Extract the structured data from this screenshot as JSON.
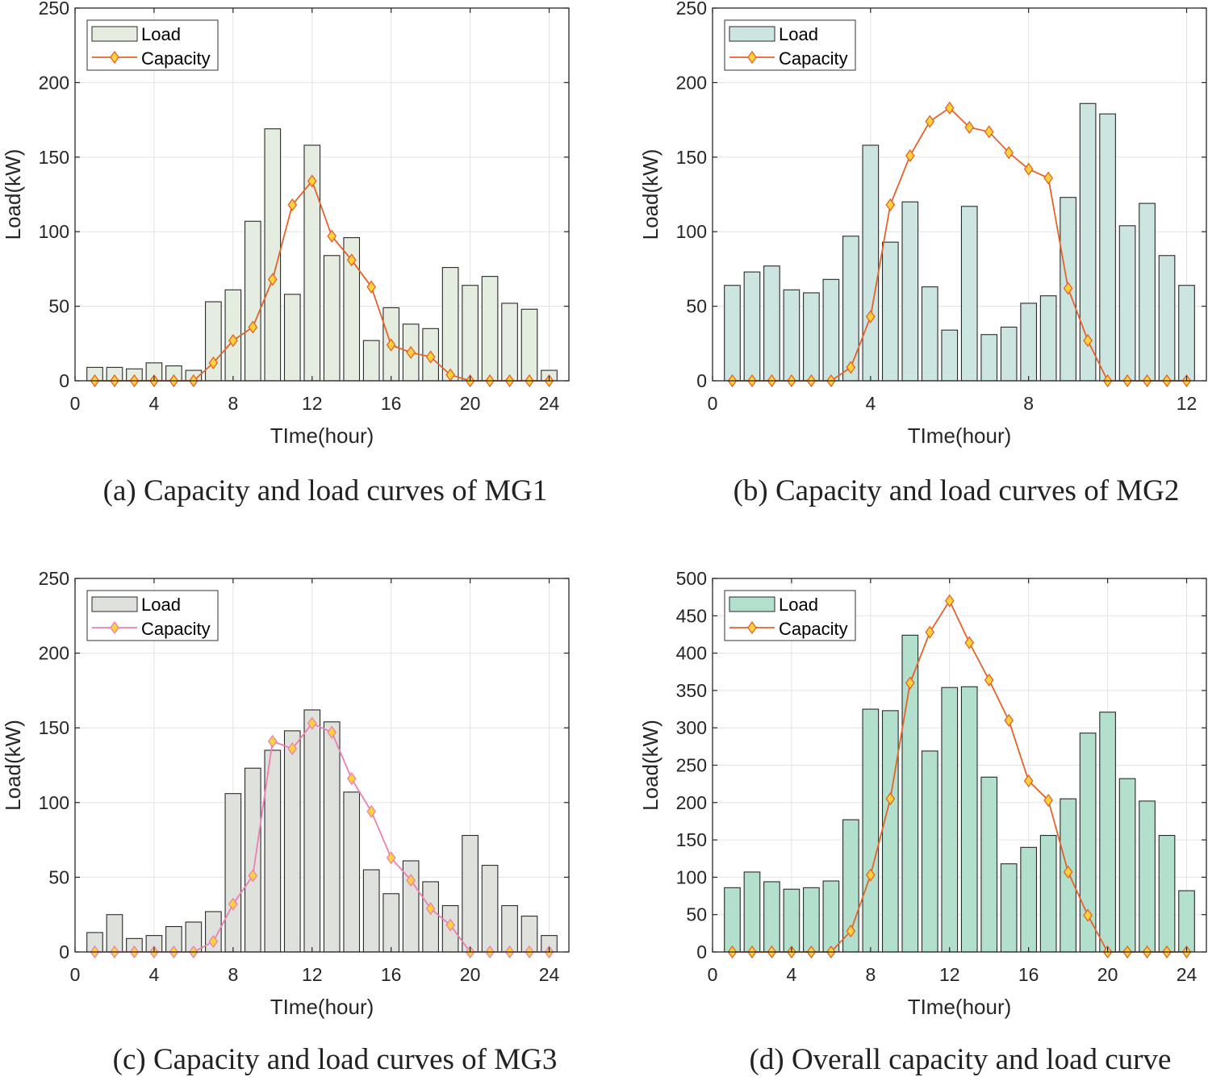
{
  "chart_data": [
    {
      "type": "bar",
      "caption": "(a) Capacity and load curves of MG1",
      "xlabel": "TIme(hour)",
      "ylabel": "Load(kW)",
      "xlim": [
        0,
        25
      ],
      "ylim": [
        0,
        250
      ],
      "xticks": [
        0,
        4,
        8,
        12,
        16,
        20,
        24
      ],
      "yticks": [
        0,
        50,
        100,
        150,
        200,
        250
      ],
      "legend": [
        "Load",
        "Capacity"
      ],
      "legend_position": "top-left",
      "bar_color": "#e5ede1",
      "line_color": "#e3632a",
      "marker_fill": "#fdd23a",
      "x": [
        1,
        2,
        3,
        4,
        5,
        6,
        7,
        8,
        9,
        10,
        11,
        12,
        13,
        14,
        15,
        16,
        17,
        18,
        19,
        20,
        21,
        22,
        23,
        24
      ],
      "series": [
        {
          "name": "Load",
          "kind": "bar",
          "values": [
            9,
            9,
            8,
            12,
            10,
            7,
            53,
            61,
            107,
            169,
            58,
            158,
            84,
            96,
            27,
            49,
            38,
            35,
            76,
            64,
            70,
            52,
            48,
            7
          ]
        },
        {
          "name": "Capacity",
          "kind": "line",
          "values": [
            0,
            0,
            0,
            0,
            0,
            0,
            12,
            27,
            36,
            68,
            118,
            134,
            97,
            81,
            63,
            24,
            19,
            16,
            4,
            0,
            0,
            0,
            0,
            0
          ]
        }
      ]
    },
    {
      "type": "bar",
      "caption": "(b) Capacity and load curves of MG2",
      "xlabel": "TIme(hour)",
      "ylabel": "Load(kW)",
      "xlim": [
        0,
        12.5
      ],
      "ylim": [
        0,
        250
      ],
      "xticks": [
        0,
        4,
        8,
        12
      ],
      "yticks": [
        0,
        50,
        100,
        150,
        200,
        250
      ],
      "legend": [
        "Load",
        "Capacity"
      ],
      "legend_position": "top-left",
      "bar_color": "#cde5e1",
      "line_color": "#e3632a",
      "marker_fill": "#fdd23a",
      "x": [
        0.5,
        1,
        1.5,
        2,
        2.5,
        3,
        3.5,
        4,
        4.5,
        5,
        5.5,
        6,
        6.5,
        7,
        7.5,
        8,
        8.5,
        9,
        9.5,
        10,
        10.5,
        11,
        11.5,
        12
      ],
      "series": [
        {
          "name": "Load",
          "kind": "bar",
          "values": [
            64,
            73,
            77,
            61,
            59,
            68,
            97,
            158,
            93,
            120,
            63,
            34,
            117,
            31,
            36,
            52,
            57,
            123,
            186,
            179,
            104,
            119,
            84,
            64
          ]
        },
        {
          "name": "Capacity",
          "kind": "line",
          "values": [
            0,
            0,
            0,
            0,
            0,
            0,
            9,
            43,
            118,
            151,
            174,
            183,
            170,
            167,
            153,
            142,
            136,
            62,
            27,
            0,
            0,
            0,
            0,
            0
          ]
        }
      ]
    },
    {
      "type": "bar",
      "caption": "(c) Capacity and load curves of MG3",
      "xlabel": "TIme(hour)",
      "ylabel": "Load(kW)",
      "xlim": [
        0,
        25
      ],
      "ylim": [
        0,
        250
      ],
      "xticks": [
        0,
        4,
        8,
        12,
        16,
        20,
        24
      ],
      "yticks": [
        0,
        50,
        100,
        150,
        200,
        250
      ],
      "legend": [
        "Load",
        "Capacity"
      ],
      "legend_position": "top-left",
      "bar_color": "#dfe1dd",
      "line_color": "#ee7fb0",
      "marker_fill": "#fdd23a",
      "x": [
        1,
        2,
        3,
        4,
        5,
        6,
        7,
        8,
        9,
        10,
        11,
        12,
        13,
        14,
        15,
        16,
        17,
        18,
        19,
        20,
        21,
        22,
        23,
        24
      ],
      "series": [
        {
          "name": "Load",
          "kind": "bar",
          "values": [
            13,
            25,
            9,
            11,
            17,
            20,
            27,
            106,
            123,
            135,
            148,
            162,
            154,
            107,
            55,
            39,
            61,
            47,
            31,
            78,
            58,
            31,
            24,
            11
          ]
        },
        {
          "name": "Capacity",
          "kind": "line",
          "values": [
            0,
            0,
            0,
            0,
            0,
            0,
            7,
            32,
            51,
            141,
            136,
            153,
            147,
            116,
            94,
            63,
            48,
            29,
            18,
            0,
            0,
            0,
            0,
            0
          ]
        }
      ]
    },
    {
      "type": "bar",
      "caption": "(d) Overall capacity and load curve",
      "xlabel": "TIme(hour)",
      "ylabel": "Load(kW)",
      "xlim": [
        0,
        25
      ],
      "ylim": [
        0,
        500
      ],
      "xticks": [
        0,
        4,
        8,
        12,
        16,
        20,
        24
      ],
      "yticks": [
        0,
        50,
        100,
        150,
        200,
        250,
        300,
        350,
        400,
        450,
        500
      ],
      "legend": [
        "Load",
        "Capacity"
      ],
      "legend_position": "top-left",
      "bar_color": "#b3dfcd",
      "line_color": "#e3632a",
      "marker_fill": "#fdd23a",
      "x": [
        1,
        2,
        3,
        4,
        5,
        6,
        7,
        8,
        9,
        10,
        11,
        12,
        13,
        14,
        15,
        16,
        17,
        18,
        19,
        20,
        21,
        22,
        23,
        24
      ],
      "series": [
        {
          "name": "Load",
          "kind": "bar",
          "values": [
            86,
            107,
            94,
            84,
            86,
            95,
            177,
            325,
            323,
            424,
            269,
            354,
            355,
            234,
            118,
            140,
            156,
            205,
            293,
            321,
            232,
            202,
            156,
            82
          ]
        },
        {
          "name": "Capacity",
          "kind": "line",
          "values": [
            0,
            0,
            0,
            0,
            0,
            0,
            28,
            103,
            205,
            360,
            428,
            470,
            414,
            364,
            310,
            229,
            203,
            107,
            49,
            0,
            0,
            0,
            0,
            0
          ]
        }
      ]
    }
  ]
}
